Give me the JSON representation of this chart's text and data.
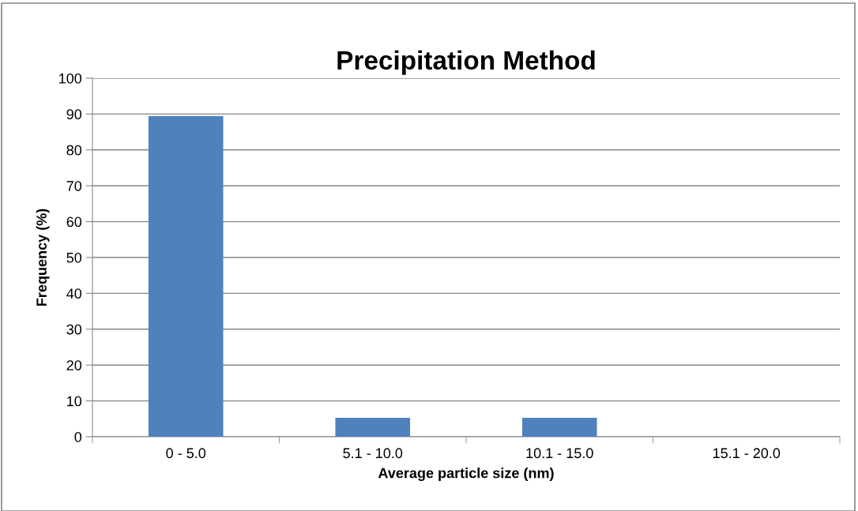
{
  "chart_data": {
    "type": "bar",
    "title": "Precipitation Method",
    "xlabel": "Average particle size (nm)",
    "ylabel": "Frequency (%)",
    "categories": [
      "0 - 5.0",
      "5.1 - 10.0",
      "10.1 - 15.0",
      "15.1 - 20.0"
    ],
    "values": [
      89.4,
      5.3,
      5.3,
      0
    ],
    "color": "#4f81bd",
    "ylim": [
      0,
      100
    ],
    "yticks": [
      0,
      10,
      20,
      30,
      40,
      50,
      60,
      70,
      80,
      90,
      100
    ],
    "grid": "y",
    "legend": false
  }
}
